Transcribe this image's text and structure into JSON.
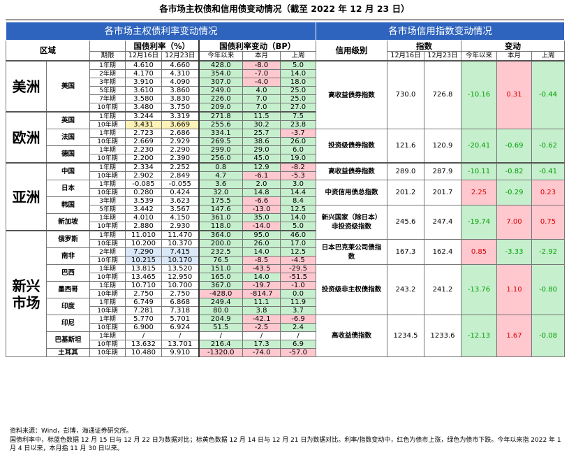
{
  "title": "各市场主权债和信用债变动情况（截至 2022 年 12 月 23 日）",
  "left": {
    "band_title": "各市场主权债利率变动情况",
    "headers": {
      "region": "区域",
      "yield_group": "国债利率（%）",
      "change_group": "国债利率变动（BP）",
      "period": "期限",
      "dates": [
        "12月16日",
        "12月23日"
      ],
      "changes": [
        "今年以来",
        "本月",
        "上周"
      ]
    },
    "regions": [
      {
        "name": "美洲",
        "countries": [
          {
            "name": "美国",
            "rows": [
              {
                "term": "1年期",
                "y1": "4.610",
                "y2": "4.660",
                "ytd": "428.0",
                "mtd": "-8.0",
                "wk": "5.0"
              },
              {
                "term": "2年期",
                "y1": "4.170",
                "y2": "4.310",
                "ytd": "354.0",
                "mtd": "-7.0",
                "wk": "14.0"
              },
              {
                "term": "3年期",
                "y1": "3.910",
                "y2": "4.090",
                "ytd": "307.0",
                "mtd": "-4.0",
                "wk": "18.0"
              },
              {
                "term": "5年期",
                "y1": "3.610",
                "y2": "3.860",
                "ytd": "249.0",
                "mtd": "4.0",
                "wk": "25.0"
              },
              {
                "term": "7年期",
                "y1": "3.580",
                "y2": "3.830",
                "ytd": "226.0",
                "mtd": "7.0",
                "wk": "25.0"
              },
              {
                "term": "10年期",
                "y1": "3.480",
                "y2": "3.750",
                "ytd": "209.0",
                "mtd": "7.0",
                "wk": "27.0"
              }
            ]
          }
        ]
      },
      {
        "name": "欧洲",
        "countries": [
          {
            "name": "英国",
            "rows": [
              {
                "term": "1年期",
                "y1": "3.244",
                "y2": "3.319",
                "ytd": "271.8",
                "mtd": "11.5",
                "wk": "7.5"
              },
              {
                "term": "10年期",
                "y1": "3.431",
                "y2": "3.669",
                "ytd": "255.6",
                "mtd": "30.2",
                "wk": "23.8"
              }
            ]
          },
          {
            "name": "法国",
            "rows": [
              {
                "term": "1年期",
                "y1": "2.723",
                "y2": "2.686",
                "ytd": "334.1",
                "mtd": "25.7",
                "wk": "-3.7"
              },
              {
                "term": "10年期",
                "y1": "2.669",
                "y2": "2.929",
                "ytd": "269.5",
                "mtd": "38.6",
                "wk": "26.0"
              }
            ]
          },
          {
            "name": "德国",
            "rows": [
              {
                "term": "1年期",
                "y1": "2.230",
                "y2": "2.290",
                "ytd": "299.0",
                "mtd": "29.0",
                "wk": "6.0"
              },
              {
                "term": "10年期",
                "y1": "2.200",
                "y2": "2.390",
                "ytd": "256.0",
                "mtd": "45.0",
                "wk": "19.0"
              }
            ]
          }
        ]
      },
      {
        "name": "亚洲",
        "countries": [
          {
            "name": "中国",
            "rows": [
              {
                "term": "1年期",
                "y1": "2.334",
                "y2": "2.252",
                "ytd": "0.8",
                "mtd": "12.9",
                "wk": "-8.2"
              },
              {
                "term": "10年期",
                "y1": "2.902",
                "y2": "2.849",
                "ytd": "4.7",
                "mtd": "-6.1",
                "wk": "-5.3"
              }
            ]
          },
          {
            "name": "日本",
            "rows": [
              {
                "term": "1年期",
                "y1": "-0.085",
                "y2": "-0.055",
                "ytd": "3.6",
                "mtd": "2.0",
                "wk": "3.0"
              },
              {
                "term": "10年期",
                "y1": "0.280",
                "y2": "0.424",
                "ytd": "32.0",
                "mtd": "14.8",
                "wk": "14.4"
              }
            ]
          },
          {
            "name": "韩国",
            "rows": [
              {
                "term": "3年期",
                "y1": "3.539",
                "y2": "3.623",
                "ytd": "175.5",
                "mtd": "-6.6",
                "wk": "8.4"
              },
              {
                "term": "5年期",
                "y1": "3.442",
                "y2": "3.567",
                "ytd": "147.6",
                "mtd": "-13.0",
                "wk": "12.5"
              }
            ]
          },
          {
            "name": "新加坡",
            "rows": [
              {
                "term": "1年期",
                "y1": "4.010",
                "y2": "4.150",
                "ytd": "361.0",
                "mtd": "35.0",
                "wk": "14.0"
              },
              {
                "term": "10年期",
                "y1": "2.880",
                "y2": "2.930",
                "ytd": "118.0",
                "mtd": "-14.0",
                "wk": "5.0"
              }
            ]
          }
        ]
      },
      {
        "name": "新兴市场",
        "countries": [
          {
            "name": "俄罗斯",
            "rows": [
              {
                "term": "1年期",
                "y1": "11.010",
                "y2": "11.470",
                "ytd": "364.0",
                "mtd": "95.0",
                "wk": "46.0"
              },
              {
                "term": "10年期",
                "y1": "10.200",
                "y2": "10.370",
                "ytd": "200.0",
                "mtd": "26.0",
                "wk": "17.0"
              }
            ]
          },
          {
            "name": "南非",
            "rows": [
              {
                "term": "2年期",
                "y1": "7.290",
                "y2": "7.415",
                "ytd": "232.5",
                "mtd": "14.0",
                "wk": "12.5"
              },
              {
                "term": "10年期",
                "y1": "10.215",
                "y2": "10.170",
                "ytd": "76.5",
                "mtd": "-8.5",
                "wk": "-4.5"
              }
            ]
          },
          {
            "name": "巴西",
            "rows": [
              {
                "term": "1年期",
                "y1": "13.815",
                "y2": "13.520",
                "ytd": "151.0",
                "mtd": "-43.5",
                "wk": "-29.5"
              },
              {
                "term": "10年期",
                "y1": "13.465",
                "y2": "12.950",
                "ytd": "165.0",
                "mtd": "14.0",
                "wk": "-51.5"
              }
            ]
          },
          {
            "name": "墨西哥",
            "rows": [
              {
                "term": "1年期",
                "y1": "10.710",
                "y2": "10.700",
                "ytd": "367.0",
                "mtd": "-19.7",
                "wk": "-1.0"
              },
              {
                "term": "10年期",
                "y1": "2.750",
                "y2": "2.750",
                "ytd": "-428.0",
                "mtd": "-814.7",
                "wk": "0.0"
              }
            ]
          },
          {
            "name": "印度",
            "rows": [
              {
                "term": "1年期",
                "y1": "6.749",
                "y2": "6.868",
                "ytd": "249.4",
                "mtd": "11.1",
                "wk": "11.9"
              },
              {
                "term": "10年期",
                "y1": "7.281",
                "y2": "7.318",
                "ytd": "80.0",
                "mtd": "3.8",
                "wk": "3.7"
              }
            ]
          },
          {
            "name": "印尼",
            "rows": [
              {
                "term": "1年期",
                "y1": "5.770",
                "y2": "5.701",
                "ytd": "204.9",
                "mtd": "-42.1",
                "wk": "-6.9"
              },
              {
                "term": "10年期",
                "y1": "6.900",
                "y2": "6.924",
                "ytd": "51.5",
                "mtd": "-2.5",
                "wk": "2.4"
              }
            ]
          },
          {
            "name": "巴基斯坦",
            "rows": [
              {
                "term": "1年期",
                "y1": "/",
                "y2": "/",
                "ytd": "/",
                "mtd": "/",
                "wk": "/"
              },
              {
                "term": "10年期",
                "y1": "13.632",
                "y2": "13.701",
                "ytd": "216.4",
                "mtd": "17.3",
                "wk": "6.9"
              }
            ]
          },
          {
            "name": "土耳其",
            "rows": [
              {
                "term": "10年期",
                "y1": "10.480",
                "y2": "9.910",
                "ytd": "-1320.0",
                "mtd": "-74.0",
                "wk": "-57.0"
              }
            ]
          }
        ]
      }
    ]
  },
  "right": {
    "band_title": "各市场信用指数变动情况",
    "headers": {
      "rating": "信用级别",
      "index_group": "指数",
      "change_group": "变动",
      "dates": [
        "12月16日",
        "12月23日"
      ],
      "changes": [
        "今年以来",
        "本月",
        "上周"
      ]
    },
    "rows": [
      {
        "label": "高收益债券指数",
        "v1": "730.0",
        "v2": "726.8",
        "ytd": "-10.16",
        "mtd": "0.31",
        "wk": "-0.44"
      },
      {
        "label": "投资级债券指数",
        "v1": "121.6",
        "v2": "120.9",
        "ytd": "-20.41",
        "mtd": "-0.69",
        "wk": "-0.62"
      },
      {
        "label": "高收益债券指数",
        "v1": "289.0",
        "v2": "287.9",
        "ytd": "-10.11",
        "mtd": "-0.82",
        "wk": "-0.41"
      },
      {
        "label": "中资信用债总指数",
        "v1": "201.2",
        "v2": "201.7",
        "ytd": "2.25",
        "mtd": "-0.29",
        "wk": "0.23"
      },
      {
        "label": "新兴国家（除日本）非投资级指数",
        "v1": "245.6",
        "v2": "247.4",
        "ytd": "-19.74",
        "mtd": "7.00",
        "wk": "0.75"
      },
      {
        "label": "日本巴克莱公司债指数",
        "v1": "167.3",
        "v2": "162.4",
        "ytd": "0.85",
        "mtd": "-3.33",
        "wk": "-2.92"
      },
      {
        "label": "投资级非主权债指数",
        "v1": "243.2",
        "v2": "241.2",
        "ytd": "-13.76",
        "mtd": "1.10",
        "wk": "-0.80"
      },
      {
        "label": "高收益债指数",
        "v1": "1234.5",
        "v2": "1233.6",
        "ytd": "-12.13",
        "mtd": "1.67",
        "wk": "-0.08"
      }
    ]
  },
  "footer": {
    "line1": "资料来源：Wind，彭博，海通证券研究所。",
    "line2": "国债利率中，标蓝色数据 12 月 15 日与 12 月 22 日为数据对比；标黄色数据 12 月 14 日与 12 月 21 日为数据对比。利率/指数变动中，红色为债市上涨，绿色为债市下跌。今年以来指 2022 年 1 月 4 日以来，本月指 11 月 30 日以来。"
  },
  "colors": {
    "band": "#2e64be",
    "red_fill": "#ffc7ce",
    "green_fill": "#c6efce",
    "blue_fill": "#dbe8f8",
    "yellow_fill": "#fff2b6",
    "red_text": "#e00000",
    "green_text": "#00a000"
  }
}
